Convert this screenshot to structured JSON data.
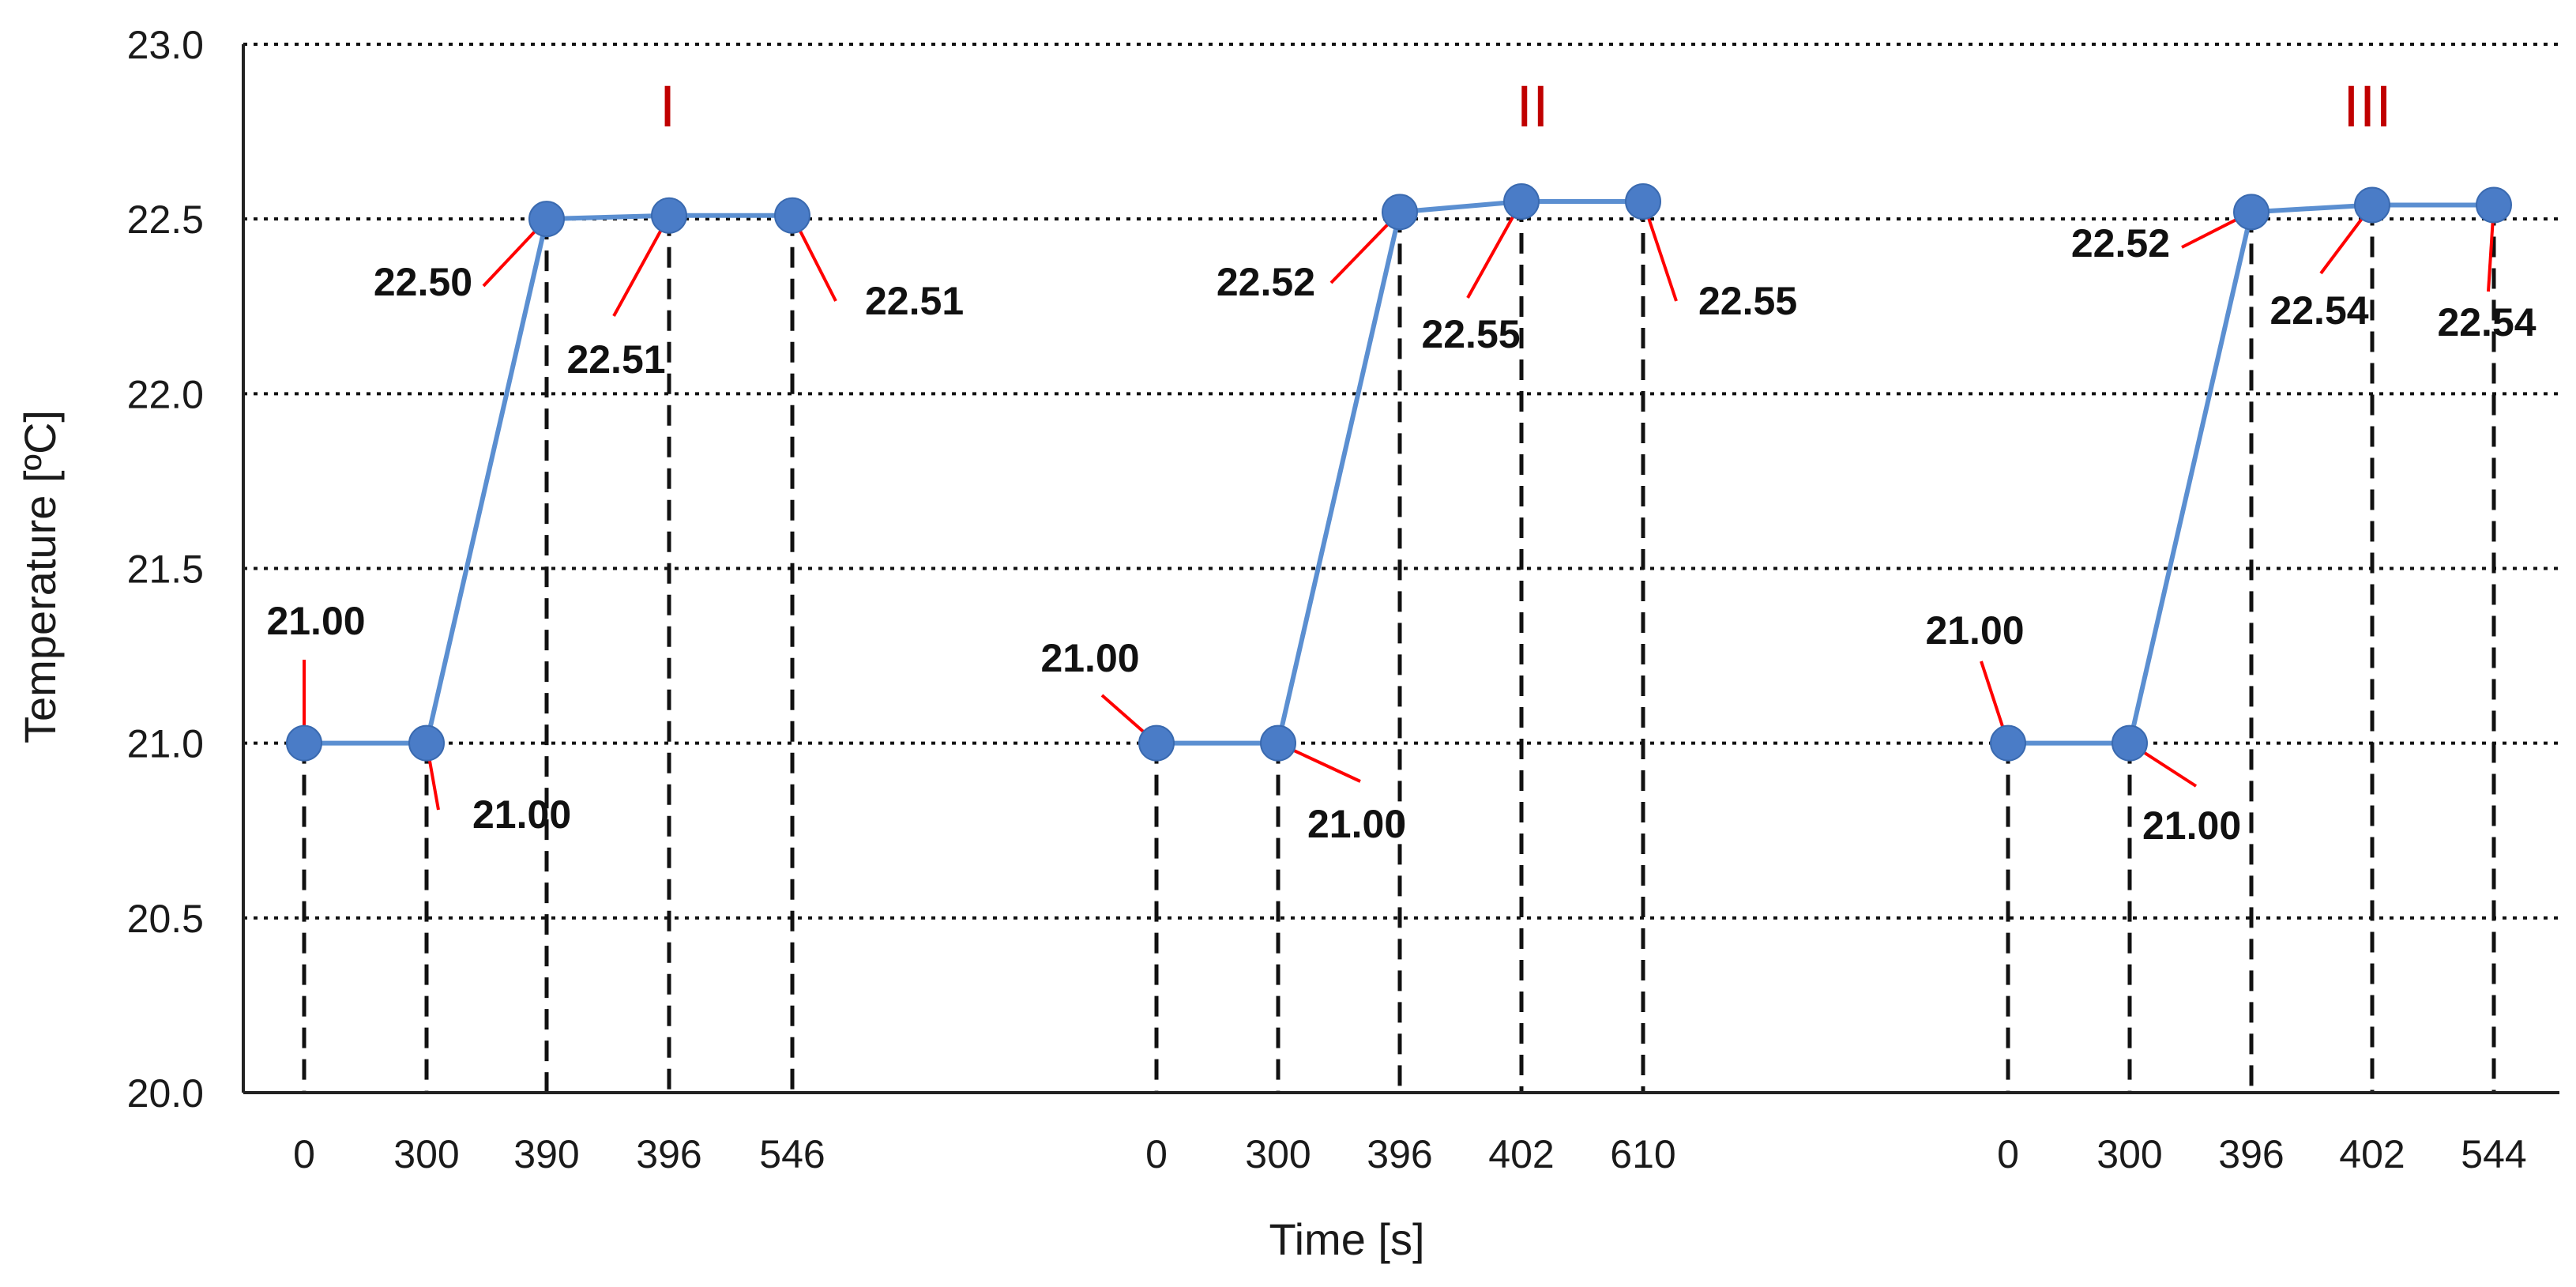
{
  "chart_data": {
    "type": "line",
    "xlabel": "Time [s]",
    "ylabel": "Temperature [ºC]",
    "ylim": [
      20.0,
      23.0
    ],
    "yticks": [
      "20.0",
      "20.5",
      "21.0",
      "21.5",
      "22.0",
      "22.5",
      "23.0"
    ],
    "grid": "horizontal dotted",
    "colors": {
      "series": "#5b8fd1",
      "marker": "#4a7cc7",
      "leader": "#ff0000",
      "panel_title": "#c00000"
    },
    "panels": [
      {
        "name": "I",
        "x": [
          "0",
          "300",
          "390",
          "396",
          "546"
        ],
        "y": [
          21.0,
          21.0,
          22.5,
          22.51,
          22.51
        ],
        "labels": [
          "21.00",
          "21.00",
          "22.50",
          "22.51",
          "22.51"
        ]
      },
      {
        "name": "II",
        "x": [
          "0",
          "300",
          "396",
          "402",
          "610"
        ],
        "y": [
          21.0,
          21.0,
          22.52,
          22.55,
          22.55
        ],
        "labels": [
          "21.00",
          "21.00",
          "22.52",
          "22.55",
          "22.55"
        ]
      },
      {
        "name": "III",
        "x": [
          "0",
          "300",
          "396",
          "402",
          "544"
        ],
        "y": [
          21.0,
          21.0,
          22.52,
          22.54,
          22.54
        ],
        "labels": [
          "21.00",
          "21.00",
          "22.52",
          "22.54",
          "22.54"
        ]
      }
    ]
  }
}
